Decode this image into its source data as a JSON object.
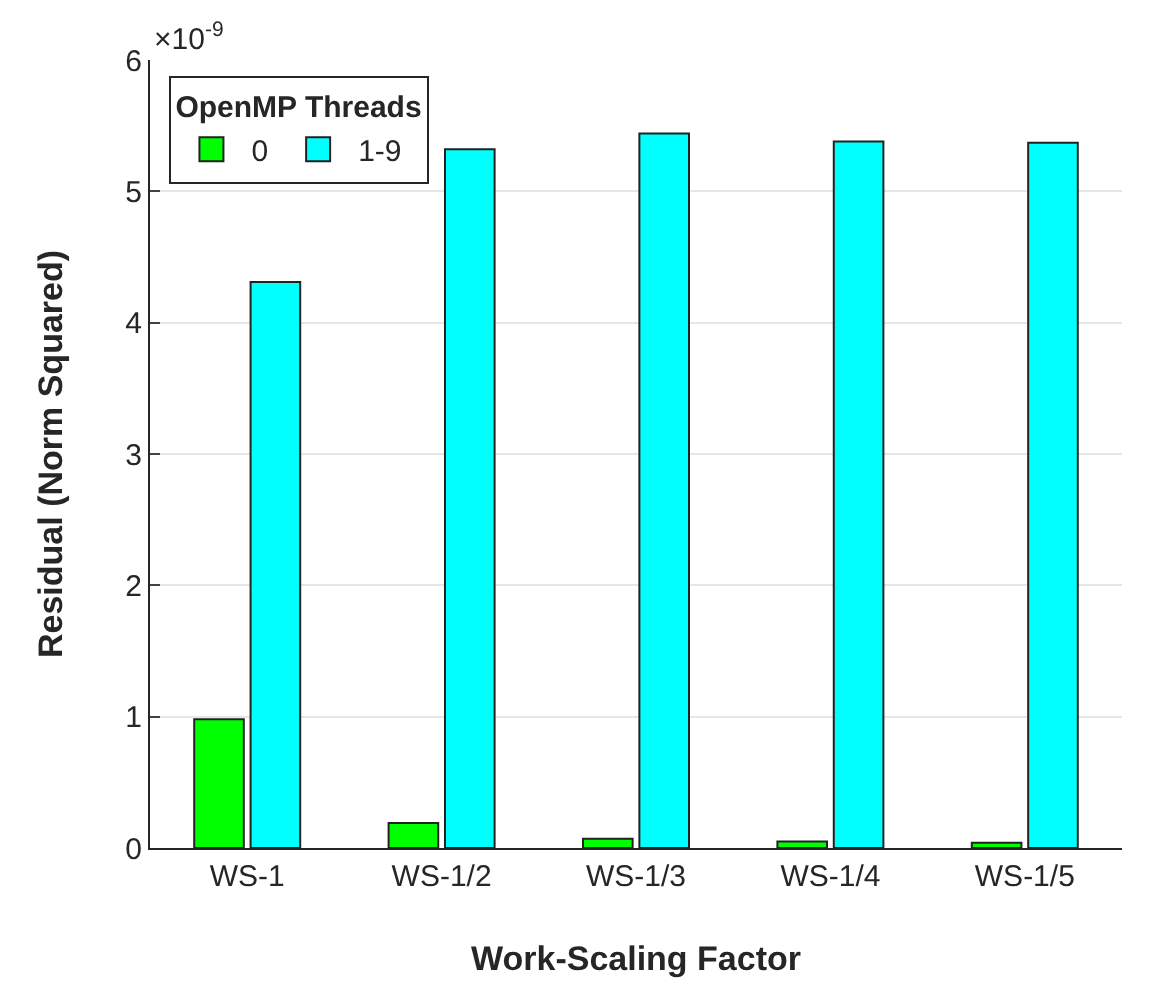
{
  "chart_data": {
    "type": "bar",
    "xlabel": "Work-Scaling Factor",
    "ylabel": "Residual (Norm Squared)",
    "legend_title": "OpenMP Threads",
    "categories": [
      "WS-1",
      "WS-1/2",
      "WS-1/3",
      "WS-1/4",
      "WS-1/5"
    ],
    "series": [
      {
        "name": "0",
        "color": "#00ff00",
        "values": [
          0.98,
          0.19,
          0.07,
          0.05,
          0.04
        ]
      },
      {
        "name": "1-9",
        "color": "#00ffff",
        "values": [
          4.31,
          5.32,
          5.44,
          5.38,
          5.37
        ]
      }
    ],
    "ylim": [
      0,
      6
    ],
    "yticks": [
      0,
      1,
      2,
      3,
      4,
      5,
      6
    ],
    "grid": "y",
    "legend": "top left",
    "annotations": [
      "×10$^{-9}$"
    ]
  }
}
